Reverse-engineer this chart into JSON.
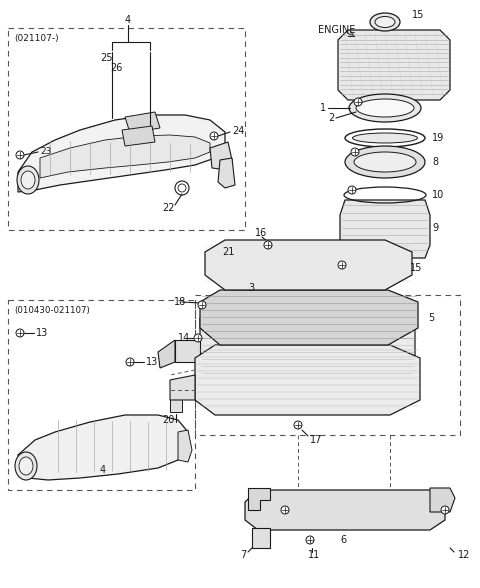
{
  "bg_color": "#ffffff",
  "line_color": "#1a1a1a",
  "figsize": [
    4.8,
    5.88
  ],
  "dpi": 100,
  "box1_label": "(021107-)",
  "box2_label": "(010430-021107)",
  "engine_label": "ENGINE"
}
